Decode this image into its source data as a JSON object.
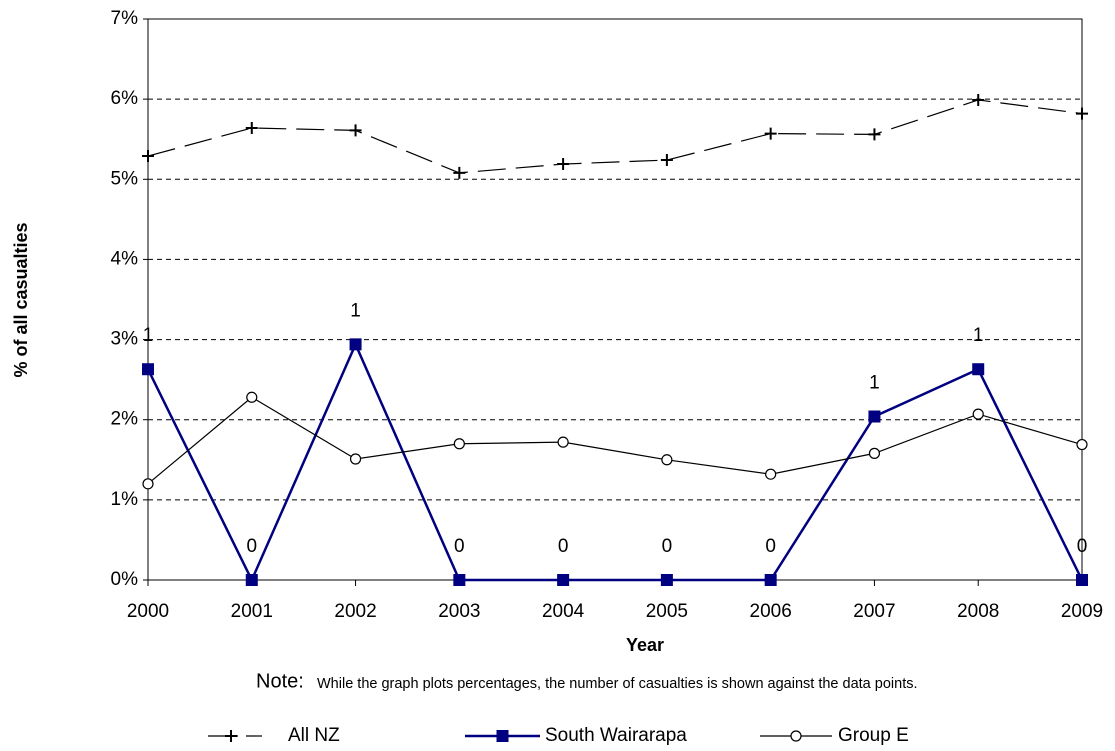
{
  "chart_data": {
    "type": "line",
    "ylabel": "% of all casualties",
    "xlabel": "Year",
    "note_label": "Note:",
    "note": "While the graph plots percentages, the number of casualties is shown against the data points.",
    "categories": [
      "2000",
      "2001",
      "2002",
      "2003",
      "2004",
      "2005",
      "2006",
      "2007",
      "2008",
      "2009"
    ],
    "series": [
      {
        "name": "All NZ",
        "color": "#000000",
        "marker": "plus",
        "dash": "long",
        "values": [
          5.29,
          5.64,
          5.61,
          5.08,
          5.19,
          5.24,
          5.57,
          5.56,
          5.99,
          5.82
        ]
      },
      {
        "name": "South Wairarapa",
        "color": "#000080",
        "marker": "square",
        "dash": "solid",
        "values": [
          2.63,
          0,
          2.94,
          0,
          0,
          0,
          0,
          2.04,
          2.63,
          0
        ],
        "counts": [
          1,
          0,
          1,
          0,
          0,
          0,
          0,
          1,
          1,
          0
        ]
      },
      {
        "name": "Group E",
        "color": "#000000",
        "marker": "circle",
        "dash": "solid",
        "values": [
          1.2,
          2.28,
          1.51,
          1.7,
          1.72,
          1.5,
          1.32,
          1.58,
          2.07,
          1.69
        ]
      }
    ],
    "ylim": [
      0,
      7
    ],
    "yticks": [
      {
        "value": 0,
        "label": "0%"
      },
      {
        "value": 1,
        "label": "1%"
      },
      {
        "value": 2,
        "label": "2%"
      },
      {
        "value": 3,
        "label": "3%"
      },
      {
        "value": 4,
        "label": "4%"
      },
      {
        "value": 5,
        "label": "5%"
      },
      {
        "value": 6,
        "label": "6%"
      },
      {
        "value": 7,
        "label": "7%"
      }
    ],
    "grid": true,
    "legend": "bottom"
  }
}
